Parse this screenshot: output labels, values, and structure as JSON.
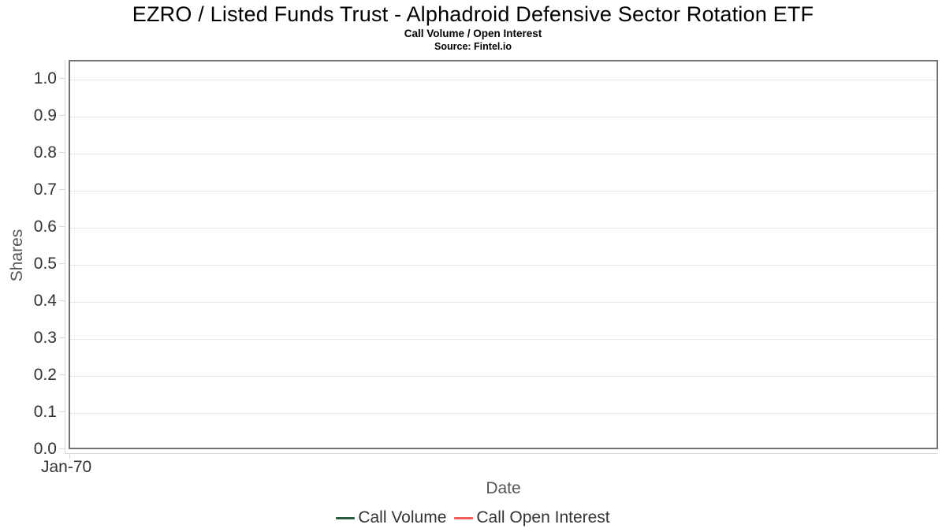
{
  "chart": {
    "title": "EZRO / Listed Funds Trust - Alphadroid Defensive Sector Rotation ETF",
    "subtitle": "Call Volume / Open Interest",
    "source": "Source: Fintel.io",
    "xlabel": "Date",
    "ylabel": "Shares",
    "x_tick": "Jan-70",
    "y_ticks": [
      "0.0",
      "0.1",
      "0.2",
      "0.3",
      "0.4",
      "0.5",
      "0.6",
      "0.7",
      "0.8",
      "0.9",
      "1.0"
    ]
  },
  "legend": {
    "items": [
      {
        "label": "Call Volume",
        "color": "#275d3b"
      },
      {
        "label": "Call Open Interest",
        "color": "#f45b5b"
      }
    ]
  },
  "colors": {
    "plot_border": "#737373",
    "gridline": "#e6e6e6",
    "axis_line": "#d8d8d8",
    "tick_label": "#333333",
    "axis_title": "#555555",
    "title": "#000000",
    "background": "#ffffff"
  },
  "chart_data": {
    "type": "line",
    "title": "EZRO / Listed Funds Trust - Alphadroid Defensive Sector Rotation ETF",
    "subtitle": "Call Volume / Open Interest",
    "source": "Source: Fintel.io",
    "xlabel": "Date",
    "ylabel": "Shares",
    "x": [
      "Jan-70"
    ],
    "series": [
      {
        "name": "Call Volume",
        "color": "#275d3b",
        "values": []
      },
      {
        "name": "Call Open Interest",
        "color": "#f45b5b",
        "values": []
      }
    ],
    "ylim": [
      0.0,
      1.05
    ],
    "y_tick_step": 0.1,
    "grid": "horizontal-only",
    "legend_position": "bottom-center",
    "note": "empty chart - no data points plotted"
  }
}
